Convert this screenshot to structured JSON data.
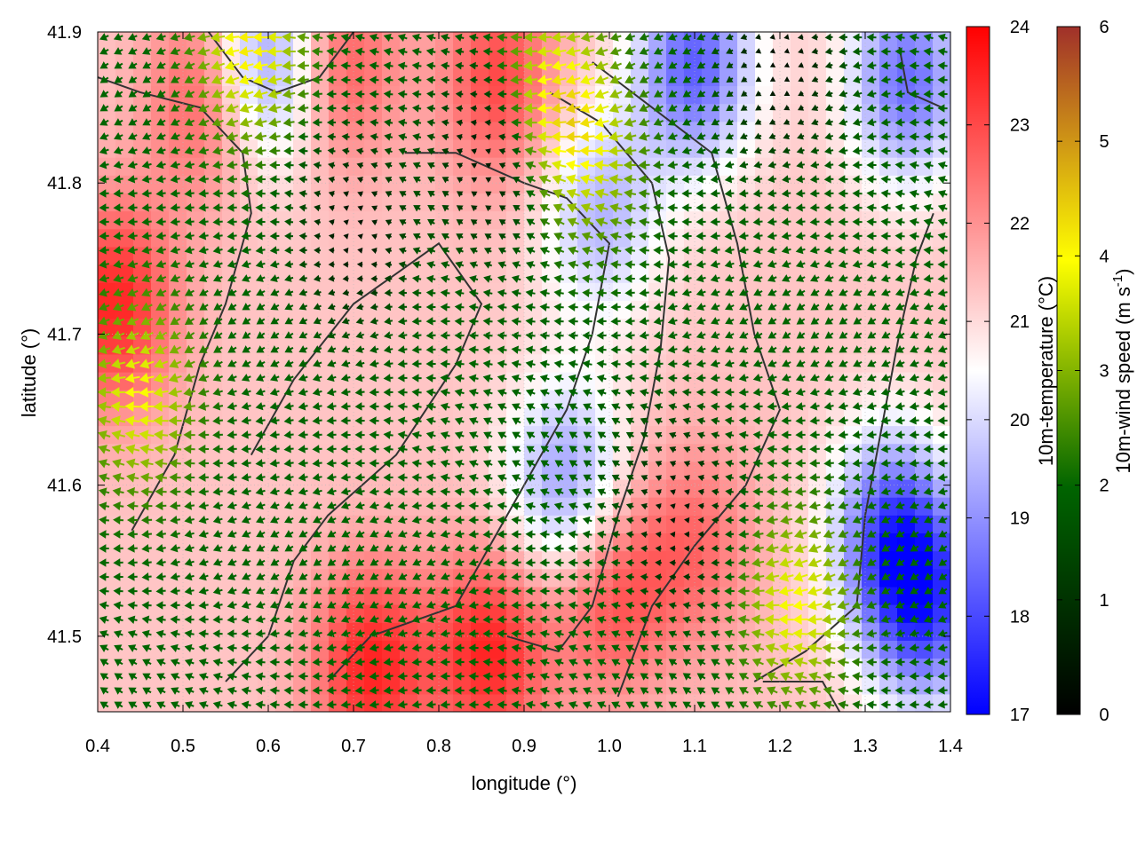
{
  "chart_data": {
    "type": "heatmap",
    "title": "",
    "xlabel": "longitude (°)",
    "ylabel": "latitude (°)",
    "xlim": [
      0.4,
      1.4
    ],
    "ylim": [
      41.45,
      41.9
    ],
    "xticks": [
      "0.4",
      "0.5",
      "0.6",
      "0.7",
      "0.8",
      "0.9",
      "1.0",
      "1.1",
      "1.2",
      "1.3",
      "1.4"
    ],
    "yticks": [
      "41.5",
      "41.6",
      "41.7",
      "41.8",
      "41.9"
    ],
    "grid": true,
    "overlay": "wind vectors (arrows) colored by wind speed, plus coastline/boundary contours",
    "colorbars": [
      {
        "label": "10m-temperature (°C)",
        "range": [
          17,
          24
        ],
        "ticks": [
          "17",
          "18",
          "19",
          "20",
          "21",
          "22",
          "23",
          "24"
        ],
        "colors": [
          "#0000ff",
          "#ffffff",
          "#ff0000"
        ]
      },
      {
        "label_main": "10m-wind speed (m s",
        "label_sup": "-1",
        "label_end": ")",
        "range": [
          0,
          6
        ],
        "ticks": [
          "0",
          "1",
          "2",
          "3",
          "4",
          "5",
          "6"
        ],
        "colors": [
          "#000000",
          "#006400",
          "#ffff00",
          "#a0302a"
        ]
      }
    ],
    "temperature_field": {
      "description": "approximate hot/cold regions read from the map",
      "warm_spots": [
        {
          "lon": 0.42,
          "lat": 41.72,
          "value": 23.5
        },
        {
          "lon": 0.72,
          "lat": 41.48,
          "value": 23.5
        },
        {
          "lon": 0.86,
          "lat": 41.49,
          "value": 23.5
        },
        {
          "lon": 0.68,
          "lat": 41.88,
          "value": 23.0
        },
        {
          "lon": 0.53,
          "lat": 41.86,
          "value": 23.0
        },
        {
          "lon": 0.87,
          "lat": 41.87,
          "value": 23.0
        },
        {
          "lon": 1.0,
          "lat": 41.53,
          "value": 23.0
        },
        {
          "lon": 1.1,
          "lat": 41.56,
          "value": 22.5
        }
      ],
      "cool_spots": [
        {
          "lon": 1.1,
          "lat": 41.88,
          "value": 18.3
        },
        {
          "lon": 1.35,
          "lat": 41.87,
          "value": 18.5
        },
        {
          "lon": 1.37,
          "lat": 41.52,
          "value": 18.2
        },
        {
          "lon": 1.33,
          "lat": 41.57,
          "value": 18.5
        },
        {
          "lon": 0.6,
          "lat": 41.88,
          "value": 18.5
        },
        {
          "lon": 0.95,
          "lat": 41.6,
          "value": 19.0
        },
        {
          "lon": 0.99,
          "lat": 41.78,
          "value": 19.5
        }
      ]
    },
    "wind_field": {
      "prevailing_direction": "westward (arrows point left)",
      "typical_speed": 2.0,
      "strong_spots": [
        {
          "lon": 0.45,
          "lat": 41.66,
          "value": 4.0
        },
        {
          "lon": 1.22,
          "lat": 41.52,
          "value": 4.0
        },
        {
          "lon": 0.98,
          "lat": 41.82,
          "value": 3.5
        },
        {
          "lon": 0.58,
          "lat": 41.89,
          "value": 4.2
        },
        {
          "lon": 0.93,
          "lat": 41.86,
          "value": 4.0
        }
      ],
      "calm_spots": [
        {
          "lon": 0.7,
          "lat": 41.77,
          "value": 0.4
        },
        {
          "lon": 1.08,
          "lat": 41.58,
          "value": 0.5
        },
        {
          "lon": 1.2,
          "lat": 41.88,
          "value": 0.3
        },
        {
          "lon": 0.86,
          "lat": 41.82,
          "value": 0.3
        }
      ]
    }
  }
}
